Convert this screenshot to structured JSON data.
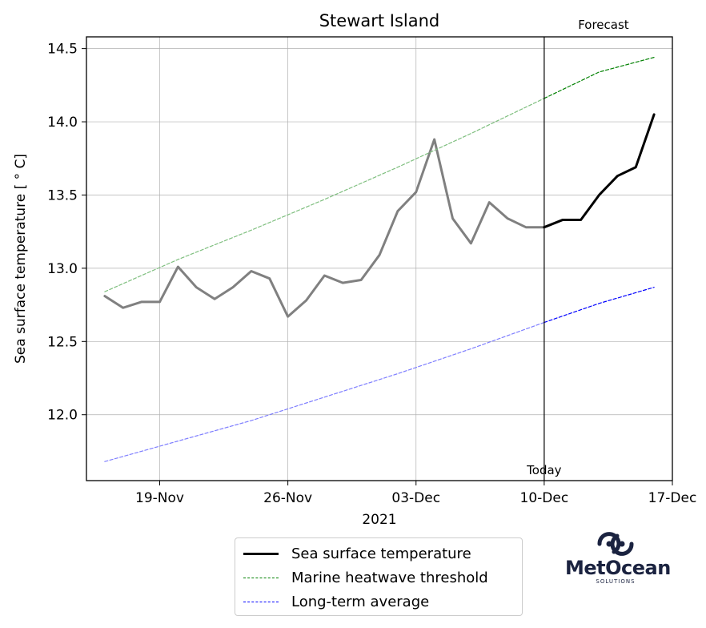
{
  "chart_data": {
    "type": "line",
    "title": "Stewart Island",
    "xlabel": "2021",
    "ylabel": "Sea surface temperature [$^\\circ$C]",
    "ylabel_display": "Sea surface temperature [ ° C]",
    "x_range": [
      "2021-11-15",
      "2021-12-17"
    ],
    "ylim": [
      11.55,
      14.58
    ],
    "x_ticks": [
      {
        "date": "2021-11-19",
        "label": "19-Nov"
      },
      {
        "date": "2021-11-26",
        "label": "26-Nov"
      },
      {
        "date": "2021-12-03",
        "label": "03-Dec"
      },
      {
        "date": "2021-12-10",
        "label": "10-Dec"
      },
      {
        "date": "2021-12-17",
        "label": "17-Dec"
      }
    ],
    "y_ticks": [
      {
        "value": 12.0,
        "label": "12.0"
      },
      {
        "value": 12.5,
        "label": "12.5"
      },
      {
        "value": 13.0,
        "label": "13.0"
      },
      {
        "value": 13.5,
        "label": "13.5"
      },
      {
        "value": 14.0,
        "label": "14.0"
      },
      {
        "value": 14.5,
        "label": "14.5"
      }
    ],
    "grid": true,
    "today_date": "2021-12-10",
    "today_label": "Today",
    "forecast_label": "Forecast",
    "legend_position": "below",
    "series": [
      {
        "name": "Sea surface temperature",
        "style": "solid",
        "color": "#000000",
        "observed_color": "#808080",
        "x": [
          "2021-11-16",
          "2021-11-17",
          "2021-11-18",
          "2021-11-19",
          "2021-11-20",
          "2021-11-21",
          "2021-11-22",
          "2021-11-23",
          "2021-11-24",
          "2021-11-25",
          "2021-11-26",
          "2021-11-27",
          "2021-11-28",
          "2021-11-29",
          "2021-11-30",
          "2021-12-01",
          "2021-12-02",
          "2021-12-03",
          "2021-12-04",
          "2021-12-05",
          "2021-12-06",
          "2021-12-07",
          "2021-12-08",
          "2021-12-09",
          "2021-12-10",
          "2021-12-11",
          "2021-12-12",
          "2021-12-13",
          "2021-12-14",
          "2021-12-15",
          "2021-12-16"
        ],
        "values": [
          12.81,
          12.73,
          12.77,
          12.77,
          13.01,
          12.87,
          12.79,
          12.87,
          12.98,
          12.93,
          12.67,
          12.78,
          12.95,
          12.9,
          12.92,
          13.09,
          13.39,
          13.52,
          13.88,
          13.34,
          13.17,
          13.45,
          13.34,
          13.28,
          13.28,
          13.33,
          13.33,
          13.5,
          13.63,
          13.69,
          14.05
        ]
      },
      {
        "name": "Marine heatwave threshold",
        "style": "dashed",
        "color": "#008000",
        "observed_color": "#7fbf7f",
        "x": [
          "2021-11-16",
          "2021-11-20",
          "2021-11-24",
          "2021-11-28",
          "2021-12-02",
          "2021-12-06",
          "2021-12-10",
          "2021-12-13",
          "2021-12-16"
        ],
        "values": [
          12.84,
          13.06,
          13.26,
          13.47,
          13.69,
          13.92,
          14.16,
          14.34,
          14.44
        ]
      },
      {
        "name": "Long-term average",
        "style": "dashed",
        "color": "#0000ff",
        "observed_color": "#7f7fff",
        "x": [
          "2021-11-16",
          "2021-11-20",
          "2021-11-24",
          "2021-11-28",
          "2021-12-02",
          "2021-12-06",
          "2021-12-10",
          "2021-12-13",
          "2021-12-16"
        ],
        "values": [
          11.68,
          11.82,
          11.96,
          12.12,
          12.28,
          12.45,
          12.63,
          12.76,
          12.87
        ]
      }
    ]
  },
  "logo": {
    "name": "MetOcean",
    "sub": "SOLUTIONS",
    "color": "#1b2340"
  }
}
